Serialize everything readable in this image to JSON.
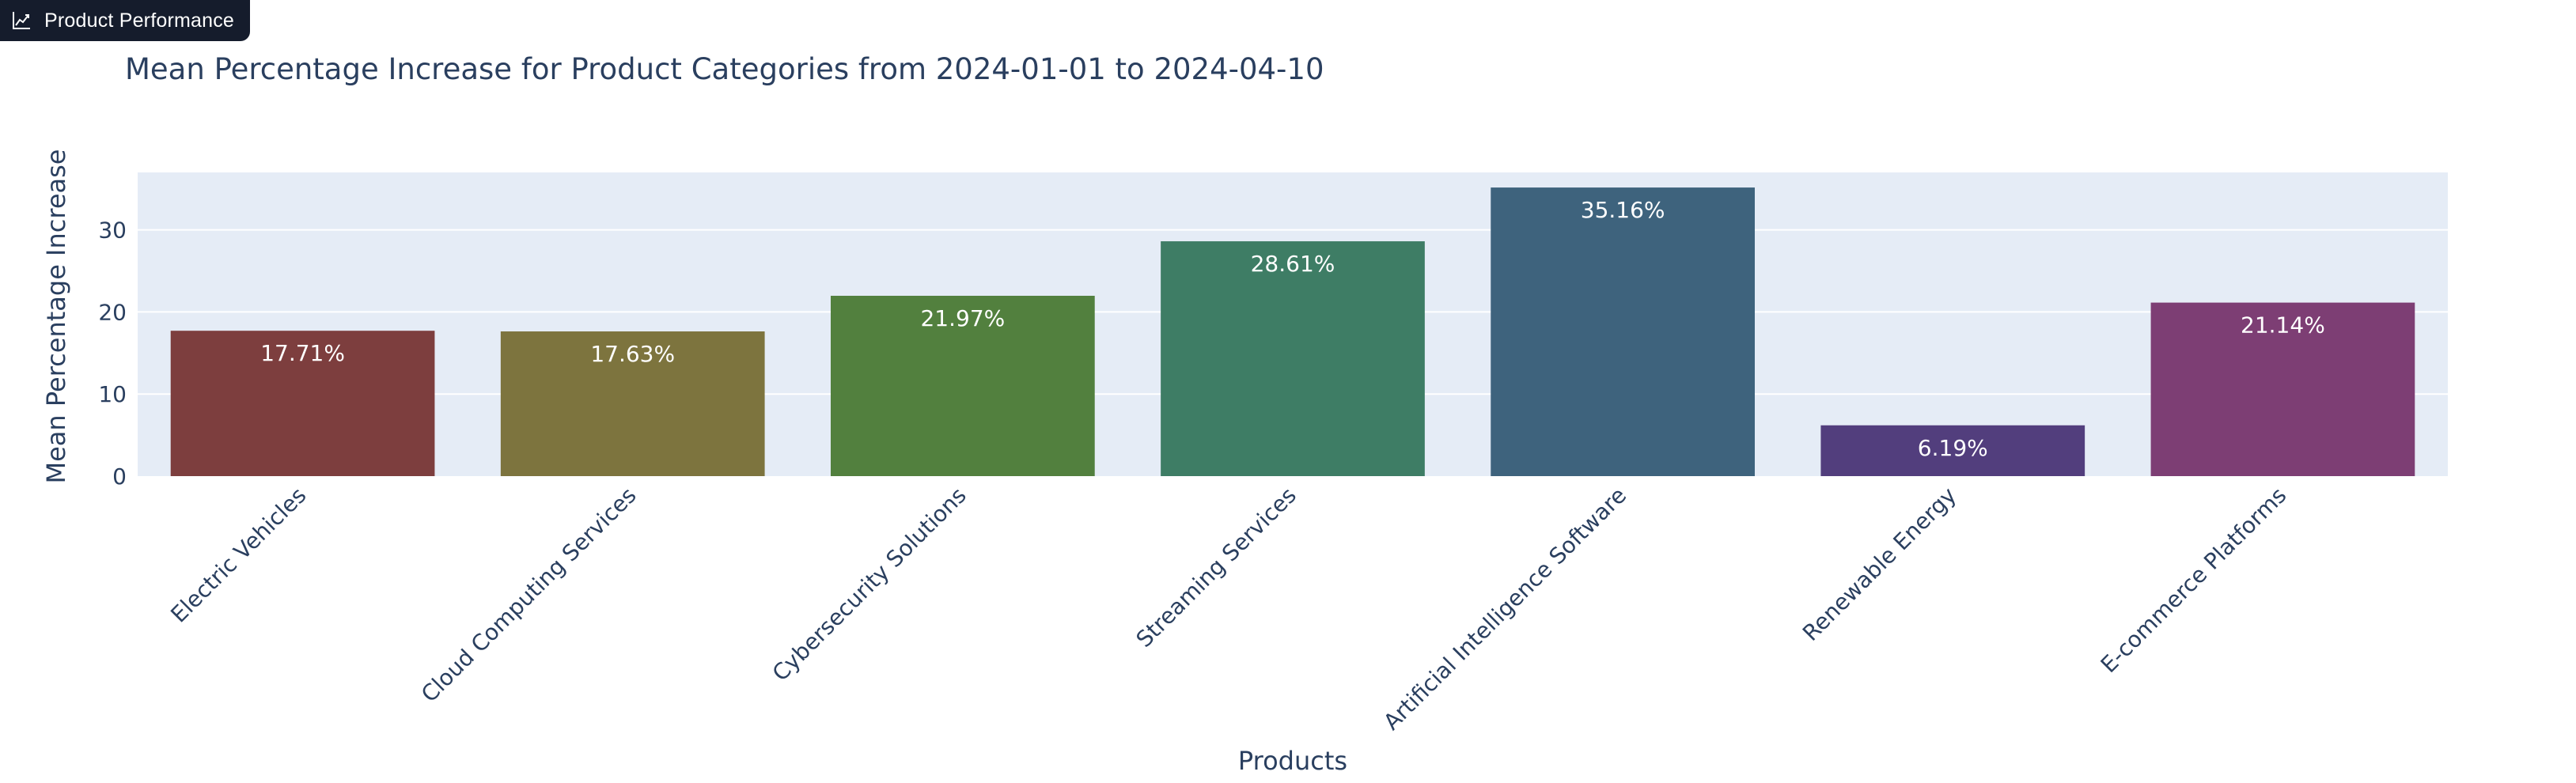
{
  "app_tab": {
    "label": "Product Performance",
    "icon": "line-chart-icon"
  },
  "chart_data": {
    "type": "bar",
    "title": "Mean Percentage Increase for Product Categories from 2024-01-01 to 2024-04-10",
    "xlabel": "Products",
    "ylabel": "Mean Percentage Increase",
    "categories": [
      "Electric Vehicles",
      "Cloud Computing Services",
      "Cybersecurity Solutions",
      "Streaming Services",
      "Artificial Intelligence Software",
      "Renewable Energy",
      "E-commerce Platforms"
    ],
    "values": [
      17.71,
      17.63,
      21.97,
      28.61,
      35.16,
      6.19,
      21.14
    ],
    "value_labels": [
      "17.71%",
      "17.63%",
      "21.97%",
      "28.61%",
      "35.16%",
      "6.19%",
      "21.14%"
    ],
    "colors": [
      "#7d3e3e",
      "#7d743e",
      "#52803e",
      "#3e7d65",
      "#3e637d",
      "#523e7d",
      "#7d3e74"
    ],
    "y_ticks": [
      0,
      10,
      20,
      30
    ],
    "ylim": [
      0,
      37.0
    ],
    "plot_background": "#e5ecf6",
    "grid": true,
    "legend": false
  }
}
